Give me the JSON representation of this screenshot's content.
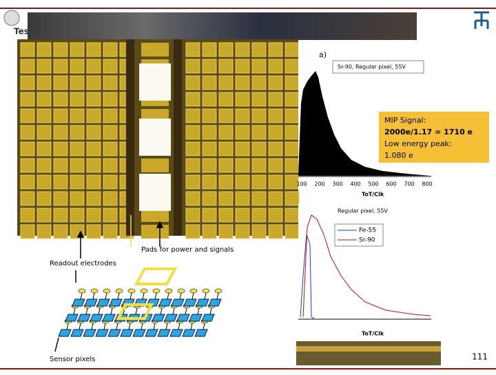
{
  "header": {
    "title": "Tes"
  },
  "plot_a": {
    "label": "a)",
    "legend": "Sr-90, Regular pixel, 55V",
    "x_ticks": [
      100,
      200,
      300,
      400,
      500,
      600,
      700,
      800
    ],
    "x_label": "ToT/Clk"
  },
  "annotation": {
    "lines": [
      "MIP Signal:",
      "2000e/1.17 = 1710 e",
      "Low energy peak:",
      "1.080 e"
    ]
  },
  "plot_b": {
    "legend_title": "Regular pixel, 55V",
    "series": [
      "Fe-55",
      "Sr-90"
    ],
    "x_label": "ToT/Clk"
  },
  "diagram": {
    "labels": [
      "Pads for power and signals",
      "Readout electrodes",
      "Sensor pixels"
    ]
  },
  "footer": {
    "page": "111"
  }
}
